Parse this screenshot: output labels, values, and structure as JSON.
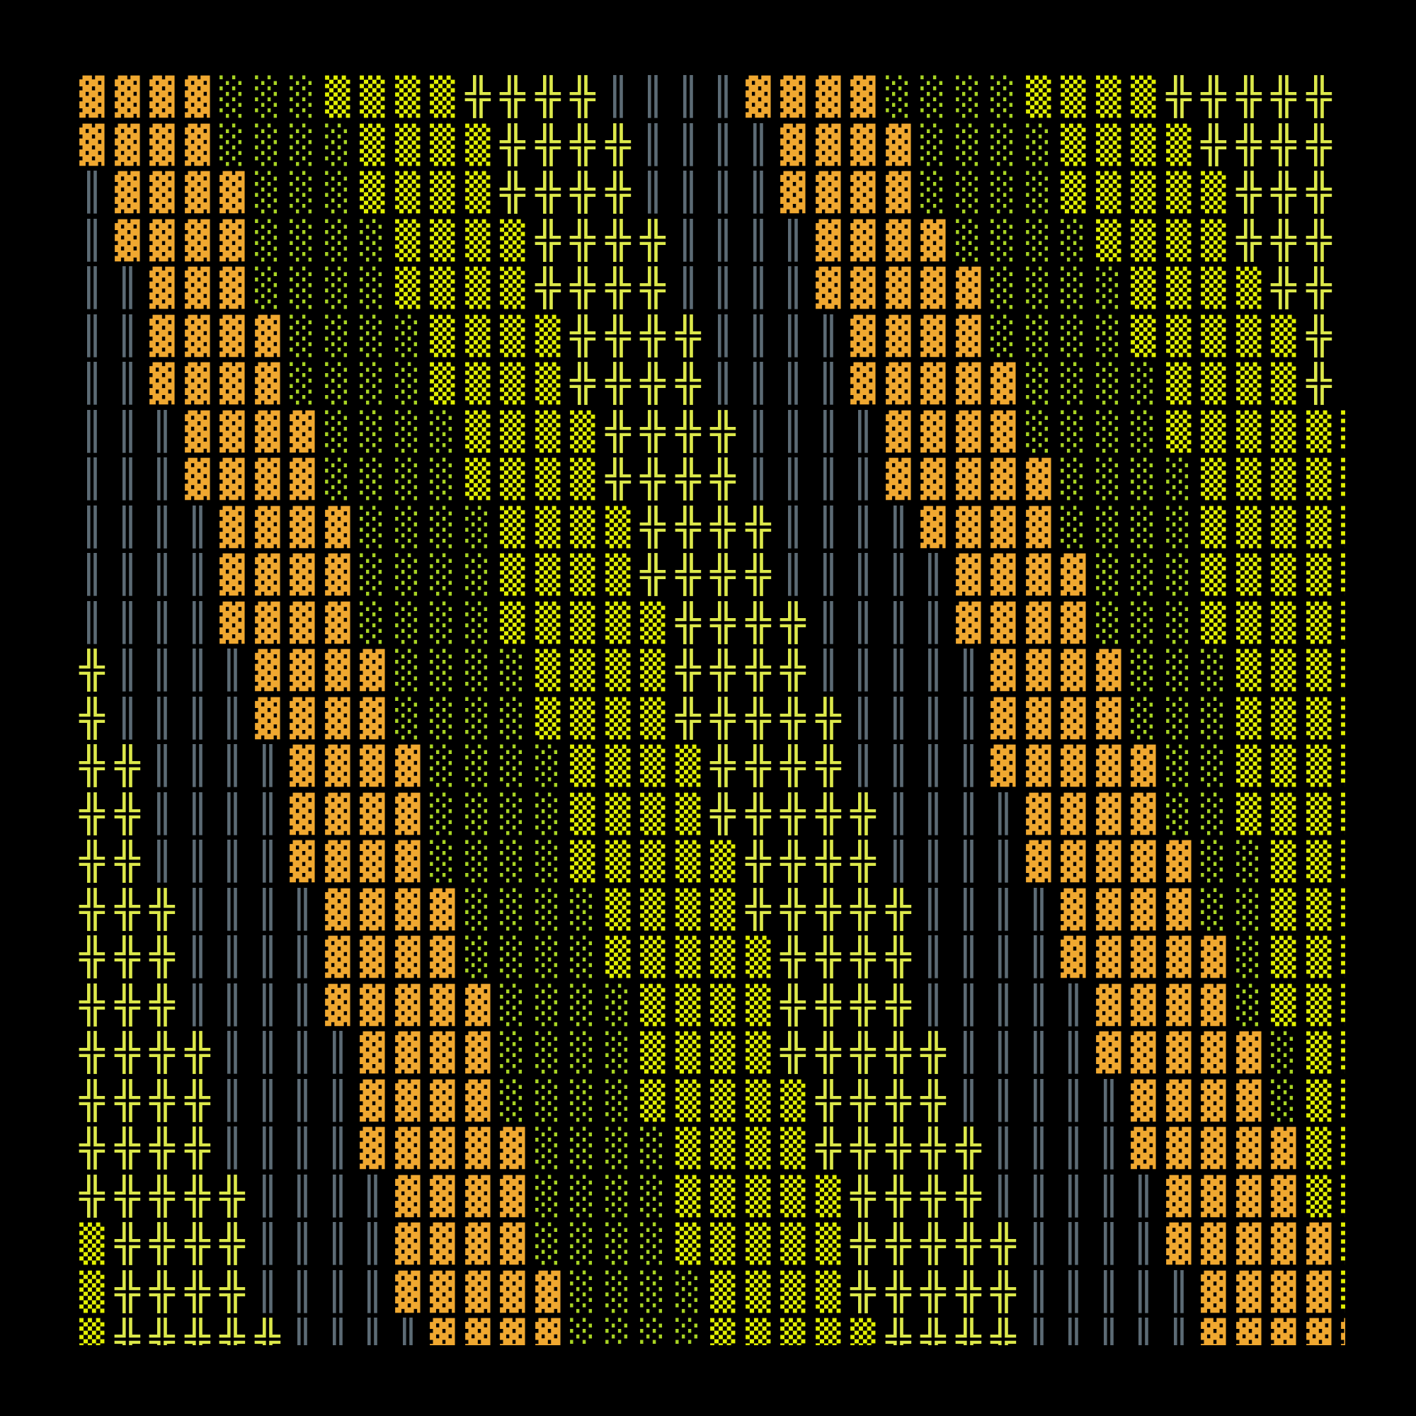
{
  "palette": {
    "background": "#000000",
    "▓": "#f0a830",
    "░": "#a8d422",
    "▒": "#e2f000",
    "╬": "#dce84a",
    "║": "#5c6b75"
  },
  "rows": [
    "▓▓▓▓░░░▒▒▒▒╬╬╬╬║║║║▓▓▓▓░░░░▒▒▒▒╬╬╬╬╬║",
    "▓▓▓▓░░░░▒▒▒▒╬╬╬╬║║║║▓▓▓▓░░░░▒▒▒▒╬╬╬╬║",
    "║▓▓▓▓░░░▒▒▒▒╬╬╬╬║║║║▓▓▓▓░░░░▒▒▒▒▒╬╬╬║",
    "║▓▓▓▓░░░░▒▒▒▒╬╬╬╬║║║║▓▓▓▓░░░░▒▒▒▒╬╬╬║",
    "║║▓▓▓░░░░▒▒▒▒╬╬╬╬║║║║▓▓▓▓▓░░░░▒▒▒▒╬╬║",
    "║║▓▓▓▓░░░░▒▒▒▒╬╬╬╬║║║║▓▓▓▓░░░░▒▒▒▒▒╬║",
    "║║▓▓▓▓░░░░▒▒▒▒╬╬╬╬║║║║▓▓▓▓▓░░░░▒▒▒▒╬║",
    "║║║▓▓▓▓░░░░▒▒▒▒╬╬╬╬║║║║▓▓▓▓░░░░▒▒▒▒▒▒",
    "║║║▓▓▓▓░░░░▒▒▒▒╬╬╬╬║║║║▓▓▓▓▓░░░░▒▒▒▒▒",
    "║║║║▓▓▓▓░░░░▒▒▒▒╬╬╬╬║║║║▓▓▓▓░░░░▒▒▒▒▒",
    "║║║║▓▓▓▓░░░░▒▒▒▒╬╬╬╬║║║║║▓▓▓▓░░░▒▒▒▒▒",
    "║║║║▓▓▓▓░░░░▒▒▒▒▒╬╬╬╬║║║║▓▓▓▓░░░▒▒▒▒▒",
    "╬║║║║▓▓▓▓░░░░▒▒▒▒╬╬╬╬║║║║║▓▓▓▓░░░▒▒▒▒",
    "╬║║║║▓▓▓▓░░░░▒▒▒▒╬╬╬╬╬║║║║▓▓▓▓░░░▒▒▒▒",
    "╬╬║║║║▓▓▓▓░░░░▒▒▒▒╬╬╬╬║║║║▓▓▓▓▓░░▒▒▒▒",
    "╬╬║║║║▓▓▓▓░░░░▒▒▒▒╬╬╬╬╬║║║║▓▓▓▓░░▒▒▒▒",
    "╬╬║║║║▓▓▓▓░░░░▒▒▒▒▒╬╬╬╬║║║║▓▓▓▓▓░░▒▒▒",
    "╬╬╬║║║║▓▓▓▓░░░░▒▒▒▒╬╬╬╬╬║║║║▓▓▓▓░░▒▒▒",
    "╬╬╬║║║║▓▓▓▓░░░░▒▒▒▒▒╬╬╬╬║║║║▓▓▓▓▓░▒▒▒",
    "╬╬╬║║║║▓▓▓▓▓░░░░▒▒▒▒╬╬╬╬║║║║║▓▓▓▓░▒▒▒",
    "╬╬╬╬║║║║▓▓▓▓░░░░▒▒▒▒╬╬╬╬╬║║║║▓▓▓▓▓░▒▒",
    "╬╬╬╬║║║║▓▓▓▓░░░░▒▒▒▒▒╬╬╬╬║║║║║▓▓▓▓░▒▒",
    "╬╬╬╬║║║║▓▓▓▓▓░░░░▒▒▒▒╬╬╬╬╬║║║║▓▓▓▓▓▒▒",
    "╬╬╬╬╬║║║║▓▓▓▓░░░░▒▒▒▒▒╬╬╬╬║║║║║▓▓▓▓▒▒",
    "▒╬╬╬╬║║║║▓▓▓▓░░░░▒▒▒▒▒╬╬╬╬╬║║║║▓▓▓▓▓▒",
    "▒╬╬╬╬║║║║▓▓▓▓▓░░░░▒▒▒▒╬╬╬╬╬║║║║║▓▓▓▓▒",
    "▒╬╬╬╬╬║║║║▓▓▓▓░░░░▒▒▒▒▒╬╬╬╬║║║║║▓▓▓▓▓"
  ]
}
